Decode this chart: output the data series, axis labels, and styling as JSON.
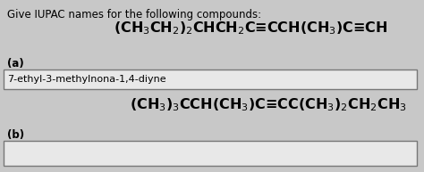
{
  "title": "Give IUPAC names for the following compounds:",
  "compound_a_formula": "(CH$_3$CH$_2$)$_2$CHCH$_2$C≡CCH(CH$_3$)C≡CH",
  "compound_b_formula": "(CH$_3$)$_3$CCH(CH$_3$)C≡CC(CH$_3$)$_2$CH$_2$CH$_3$",
  "label_a": "(a)",
  "label_b": "(b)",
  "answer_a": "7-ethyl-3-methylnona-1,4-diyne",
  "bg_color": "#c8c8c8",
  "box_color": "#e8e8e8",
  "text_color": "#000000",
  "title_fontsize": 8.5,
  "formula_fontsize": 11.5,
  "label_fontsize": 8.5,
  "answer_fontsize": 8.0
}
